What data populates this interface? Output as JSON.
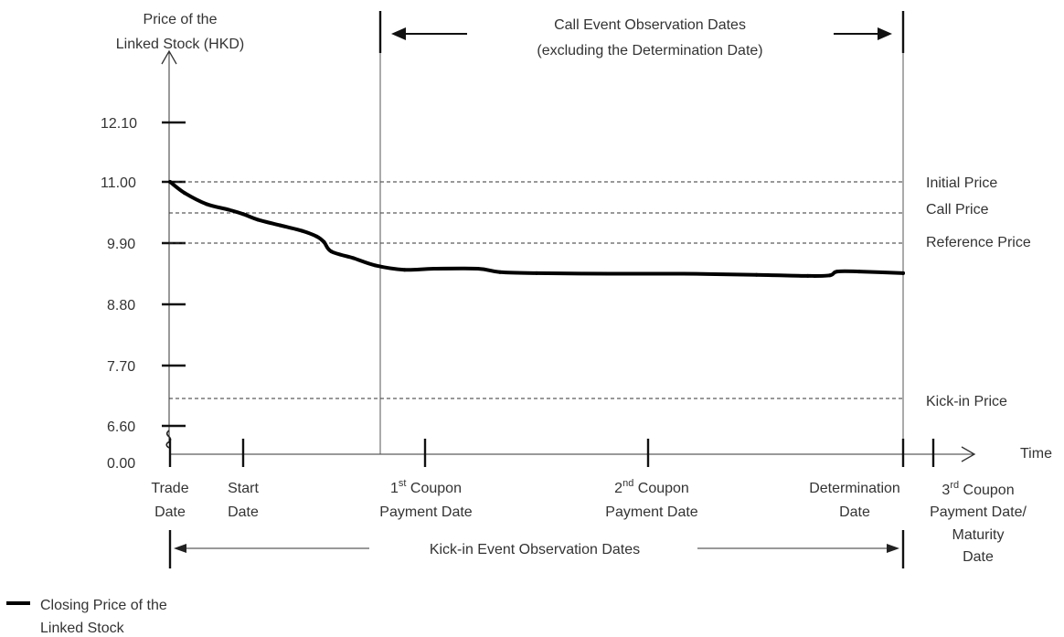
{
  "chart_data": {
    "type": "line",
    "ylabel": [
      "Price of the",
      "Linked Stock (HKD)"
    ],
    "xlabel": "Time",
    "yticks": [
      "12.10",
      "11.00",
      "9.90",
      "8.80",
      "7.70",
      "6.60",
      "0.00"
    ],
    "axis_break": true,
    "reference_lines": [
      {
        "label": "Initial Price",
        "value": 11.0
      },
      {
        "label": "Call Price",
        "value": 10.45
      },
      {
        "label": "Reference Price",
        "value": 9.9
      },
      {
        "label": "Kick-in Price",
        "value": 7.15
      }
    ],
    "x_events": [
      {
        "id": "trade",
        "position": 0.0,
        "lines": [
          "Trade",
          "Date"
        ]
      },
      {
        "id": "start",
        "position": 0.1,
        "lines": [
          "Start",
          "Date"
        ]
      },
      {
        "id": "first_coupon",
        "position": 0.35,
        "sup": "st",
        "lines": [
          "1",
          " Coupon",
          "Payment Date"
        ]
      },
      {
        "id": "second_coupon",
        "position": 0.65,
        "sup": "nd",
        "lines": [
          "2",
          " Coupon",
          "Payment Date"
        ]
      },
      {
        "id": "determination",
        "position": 1.0,
        "lines": [
          "Determination",
          "Date"
        ]
      },
      {
        "id": "third_coupon",
        "position": 1.04,
        "sup": "rd",
        "lines": [
          "3",
          " Coupon",
          "Payment Date/",
          "Maturity",
          "Date"
        ]
      }
    ],
    "series": [
      {
        "name": "Closing Price of the Linked Stock",
        "x": [
          0.0,
          0.02,
          0.05,
          0.08,
          0.1,
          0.12,
          0.15,
          0.18,
          0.2,
          0.21,
          0.22,
          0.25,
          0.28,
          0.32,
          0.36,
          0.42,
          0.45,
          0.5,
          0.6,
          0.7,
          0.8,
          0.87,
          0.9,
          0.91,
          0.94,
          1.0
        ],
        "y": [
          11.0,
          10.8,
          10.6,
          10.5,
          10.42,
          10.32,
          10.22,
          10.12,
          10.02,
          9.92,
          9.75,
          9.63,
          9.5,
          9.42,
          9.44,
          9.44,
          9.38,
          9.36,
          9.35,
          9.35,
          9.33,
          9.31,
          9.32,
          9.39,
          9.39,
          9.36
        ]
      }
    ],
    "call_observation": {
      "lines": [
        "Call Event Observation Dates",
        "(excluding the Determination Date)"
      ],
      "start": 0.29,
      "end": 1.0
    },
    "kickin_observation": {
      "label": "Kick-in Event Observation Dates",
      "start": 0.0,
      "end": 1.0
    },
    "legend": {
      "label_lines": [
        "Closing Price of the",
        "Linked Stock"
      ],
      "position": "bottom-left"
    }
  }
}
